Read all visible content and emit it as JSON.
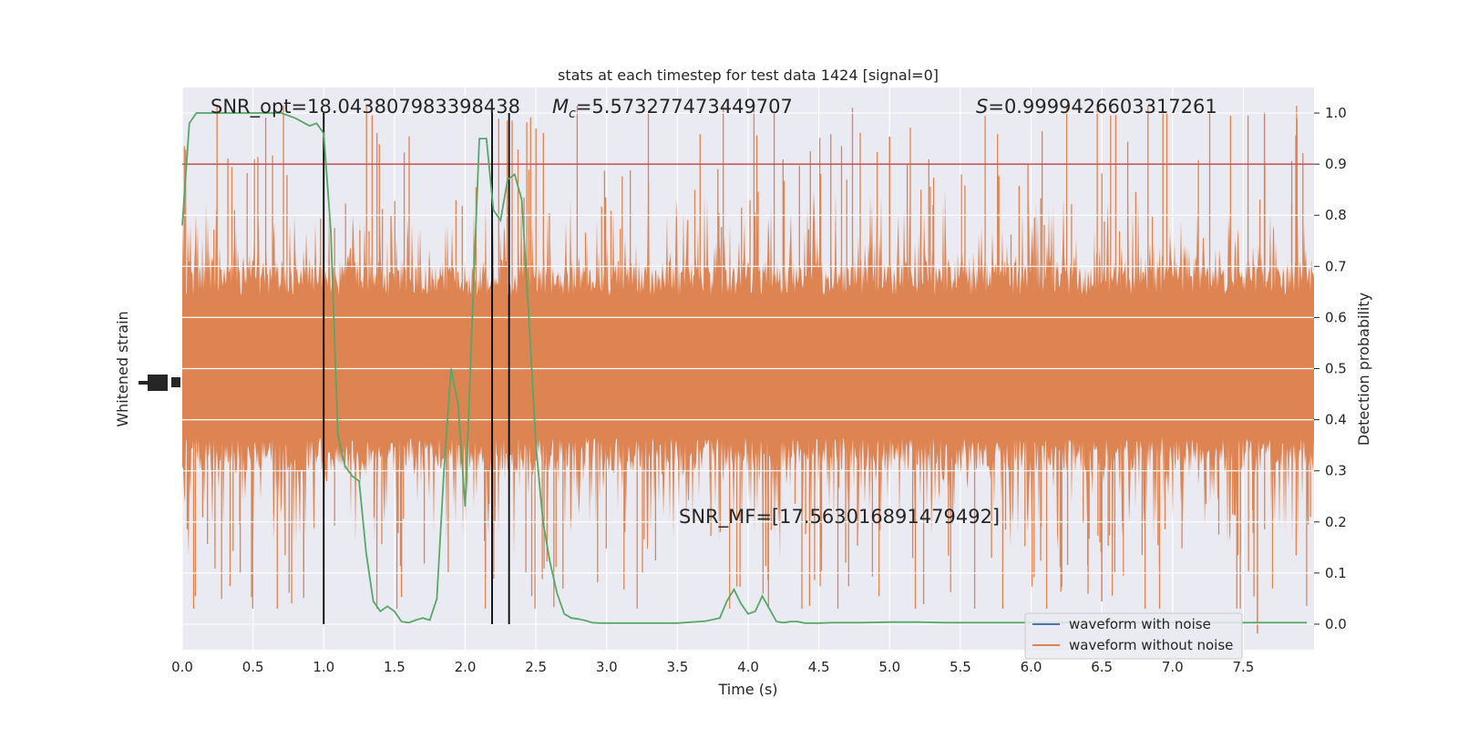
{
  "chart_data": {
    "type": "line",
    "title": "stats at each timestep for test data 1424 [signal=0]",
    "xlabel": "Time (s)",
    "ylabel_left": "Whitened strain",
    "ylabel_right": "Detection probability",
    "xlim": [
      0,
      8
    ],
    "ylim_right": [
      -0.05,
      1.05
    ],
    "x_ticks": [
      "0.0",
      "0.5",
      "1.0",
      "1.5",
      "2.0",
      "2.5",
      "3.0",
      "3.5",
      "4.0",
      "4.5",
      "5.0",
      "5.5",
      "6.0",
      "6.5",
      "7.0",
      "7.5"
    ],
    "y_right_ticks": [
      "0.0",
      "0.1",
      "0.2",
      "0.3",
      "0.4",
      "0.5",
      "0.6",
      "0.7",
      "0.8",
      "0.9",
      "1.0"
    ],
    "grid": true,
    "background": "#eaeaf2",
    "threshold": {
      "value": 0.9,
      "color": "#c44e52"
    },
    "vertical_lines": [
      1.0,
      2.19,
      2.31
    ],
    "annotations": {
      "snr_opt": "SNR_opt=18.043807983398438",
      "mc_symbol": "M",
      "mc_sub": "c",
      "mc_value": "=5.573277473449707",
      "s_symbol": "S",
      "s_value": "=0.9999426603317261",
      "snr_mf": "SNR_MF=[17.563016891479492]"
    },
    "series": [
      {
        "name": "waveform with noise",
        "color": "#4c72b0"
      },
      {
        "name": "waveform without noise",
        "color": "#dd8452"
      },
      {
        "name": "",
        "color": "#55a868",
        "x": [
          0.0,
          0.05,
          0.1,
          0.2,
          0.3,
          0.4,
          0.5,
          0.6,
          0.7,
          0.8,
          0.9,
          0.95,
          1.0,
          1.05,
          1.1,
          1.15,
          1.2,
          1.25,
          1.3,
          1.35,
          1.4,
          1.45,
          1.5,
          1.55,
          1.6,
          1.65,
          1.7,
          1.75,
          1.8,
          1.85,
          1.9,
          1.95,
          2.0,
          2.05,
          2.1,
          2.15,
          2.2,
          2.25,
          2.3,
          2.35,
          2.4,
          2.45,
          2.5,
          2.55,
          2.6,
          2.65,
          2.7,
          2.75,
          2.8,
          2.85,
          2.9,
          2.95,
          3.0,
          3.1,
          3.2,
          3.3,
          3.4,
          3.5,
          3.6,
          3.7,
          3.8,
          3.85,
          3.9,
          3.95,
          4.0,
          4.05,
          4.1,
          4.15,
          4.2,
          4.25,
          4.3,
          4.35,
          4.4,
          4.45,
          4.5,
          4.6,
          4.7,
          4.8,
          5.0,
          5.2,
          5.4,
          5.5,
          5.6,
          5.8,
          6.0,
          6.2,
          6.5,
          7.0,
          7.5,
          7.8,
          7.95
        ],
        "values": [
          0.78,
          0.98,
          1.0,
          1.0,
          1.0,
          1.0,
          1.0,
          1.0,
          1.0,
          0.99,
          0.975,
          0.98,
          0.96,
          0.77,
          0.37,
          0.31,
          0.29,
          0.28,
          0.14,
          0.045,
          0.025,
          0.035,
          0.025,
          0.005,
          0.003,
          0.008,
          0.012,
          0.008,
          0.05,
          0.3,
          0.5,
          0.43,
          0.23,
          0.6,
          0.95,
          0.95,
          0.81,
          0.79,
          0.87,
          0.88,
          0.83,
          0.6,
          0.35,
          0.2,
          0.12,
          0.06,
          0.02,
          0.012,
          0.01,
          0.007,
          0.003,
          0.002,
          0.002,
          0.002,
          0.002,
          0.002,
          0.002,
          0.002,
          0.004,
          0.006,
          0.012,
          0.045,
          0.068,
          0.04,
          0.02,
          0.025,
          0.055,
          0.03,
          0.005,
          0.003,
          0.005,
          0.005,
          0.002,
          0.002,
          0.002,
          0.003,
          0.003,
          0.003,
          0.004,
          0.004,
          0.003,
          0.003,
          0.003,
          0.003,
          0.003,
          0.003,
          0.003,
          0.003,
          0.003,
          0.003,
          0.003
        ]
      }
    ]
  }
}
